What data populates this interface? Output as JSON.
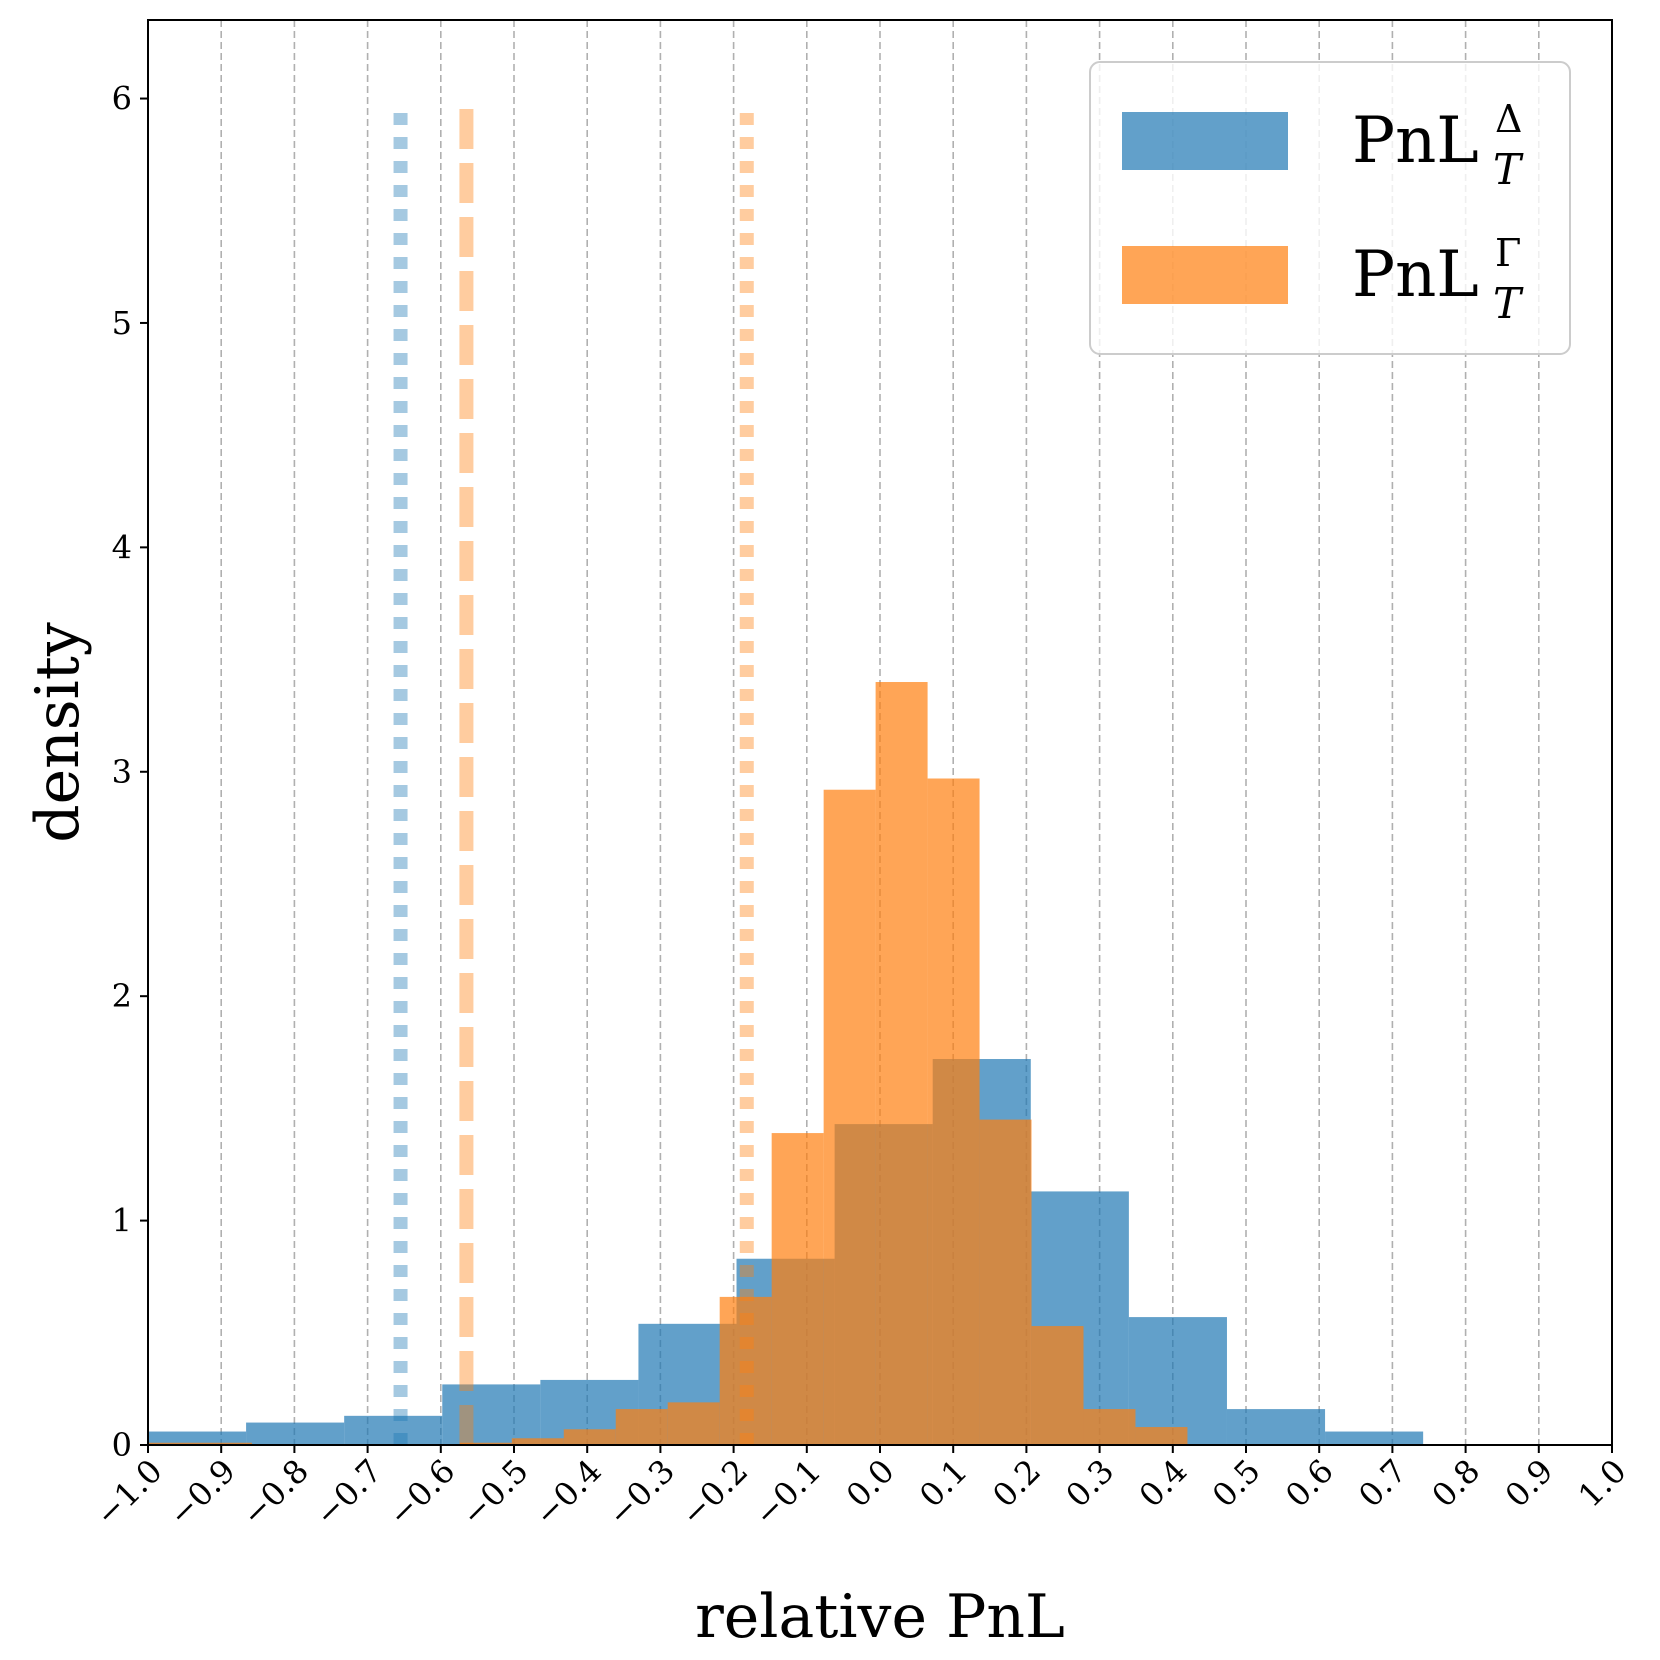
{
  "chart_data": {
    "type": "bar",
    "xlabel": "relative PnL",
    "ylabel": "density",
    "xlim": [
      -1.0,
      1.0
    ],
    "ylim": [
      0,
      6.35
    ],
    "grid": "vertical dashed",
    "legend_placement": "top-right",
    "x_ticks": [
      "−1.0",
      "−0.9",
      "−0.8",
      "−0.7",
      "−0.6",
      "−0.5",
      "−0.4",
      "−0.3",
      "−0.2",
      "−0.1",
      "0.0",
      "0.1",
      "0.2",
      "0.3",
      "0.4",
      "0.5",
      "0.6",
      "0.7",
      "0.8",
      "0.9",
      "1.0"
    ],
    "x_tick_values": [
      -1.0,
      -0.9,
      -0.8,
      -0.7,
      -0.6,
      -0.5,
      -0.4,
      -0.3,
      -0.2,
      -0.1,
      0.0,
      0.1,
      0.2,
      0.3,
      0.4,
      0.5,
      0.6,
      0.7,
      0.8,
      0.9,
      1.0
    ],
    "y_ticks": [
      "0",
      "1",
      "2",
      "3",
      "4",
      "5",
      "6"
    ],
    "y_tick_values": [
      0,
      1,
      2,
      3,
      4,
      5,
      6
    ],
    "series": [
      {
        "name": "PnL^Δ_T",
        "legend_base": "PnL",
        "legend_sup": "Δ",
        "legend_sub": "T",
        "color": "#1f77b4",
        "opacity": 0.7,
        "bin_edges": [
          -1.0,
          -0.866,
          -0.732,
          -0.598,
          -0.464,
          -0.33,
          -0.196,
          -0.062,
          0.072,
          0.206,
          0.34,
          0.474,
          0.608,
          0.742
        ],
        "values": [
          0.06,
          0.1,
          0.13,
          0.27,
          0.29,
          0.54,
          0.83,
          1.43,
          1.72,
          1.13,
          0.57,
          0.16,
          0.06
        ],
        "vlines": [
          {
            "x": -0.655,
            "style": "dotted"
          }
        ]
      },
      {
        "name": "PnL^Γ_T",
        "legend_base": "PnL",
        "legend_sup": "Γ",
        "legend_sub": "T",
        "color": "#ff7f0e",
        "opacity": 0.7,
        "bin_edges": [
          -1.0,
          -0.929,
          -0.858,
          -0.787,
          -0.716,
          -0.645,
          -0.574,
          -0.503,
          -0.432,
          -0.361,
          -0.29,
          -0.219,
          -0.148,
          -0.077,
          -0.006,
          0.065,
          0.136,
          0.207,
          0.278,
          0.349,
          0.42
        ],
        "values": [
          0.01,
          0.01,
          0.0,
          0.0,
          0.0,
          0.0,
          0.01,
          0.03,
          0.07,
          0.16,
          0.19,
          0.66,
          1.39,
          2.92,
          3.4,
          2.97,
          1.45,
          0.53,
          0.16,
          0.08
        ],
        "vlines": [
          {
            "x": -0.565,
            "style": "dashed"
          },
          {
            "x": -0.182,
            "style": "dotted"
          }
        ]
      }
    ]
  }
}
